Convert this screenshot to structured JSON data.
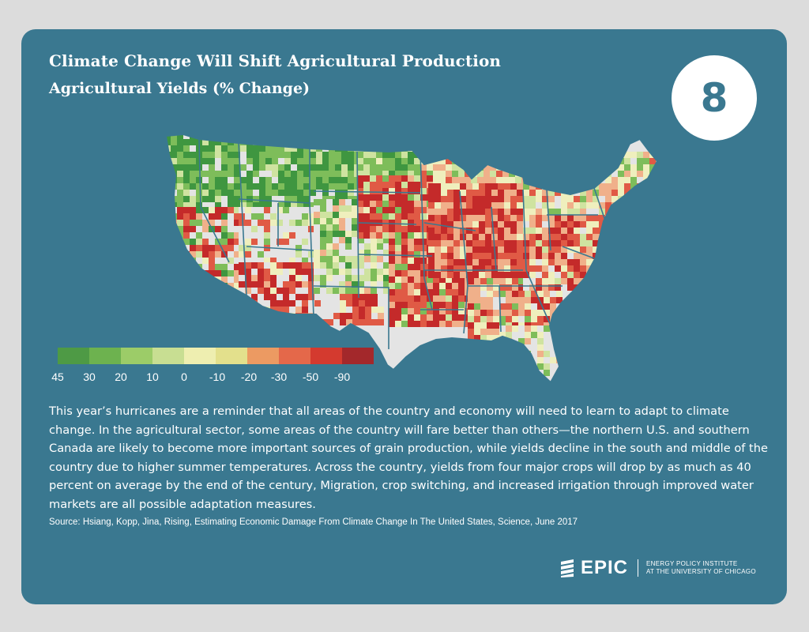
{
  "title": "Climate Change Will Shift Agricultural Production",
  "subtitle": "Agricultural Yields (% Change)",
  "badge": "8",
  "legend": {
    "labels": [
      "45",
      "30",
      "20",
      "10",
      "0",
      "-10",
      "-20",
      "-30",
      "-50",
      "-90"
    ],
    "colors": [
      "#4e9a45",
      "#6db24f",
      "#9ccc68",
      "#c8de92",
      "#eeeeb0",
      "#e3e08c",
      "#ec9a62",
      "#e4684a",
      "#d43a2f",
      "#a3282b"
    ]
  },
  "map": {
    "colors": {
      "land": "#e4e4e4",
      "state_border": "#3a7890",
      "strong_gain": "#3f9640",
      "gain": "#7ebd5a",
      "mild_gain": "#cfe3a0",
      "neutral": "#efefbd",
      "mild_loss": "#f0b08a",
      "loss": "#e05a45",
      "strong_loss": "#c42a2a"
    }
  },
  "body": "This year’s hurricanes are a reminder that all areas of the country and economy will need to learn to adapt to climate change. In the agricultural sector, some areas of the country will fare better than others—the northern U.S. and southern Canada are likely to become more important sources of grain production, while yields decline in the south and middle of the country due to higher summer temperatures. Across the country, yields from four major crops will drop by as much as 40 percent on average by the end of the century, Migration, crop switching, and increased irrigation through improved water markets are all possible adaptation measures.",
  "source": "Source: Hsiang, Kopp, Jina, Rising, Estimating Economic Damage From Climate Change In The United States, Science, June 2017",
  "logo": {
    "wordmark": "EPIC",
    "line1": "ENERGY POLICY INSTITUTE",
    "line2": "AT THE UNIVERSITY OF CHICAGO"
  }
}
